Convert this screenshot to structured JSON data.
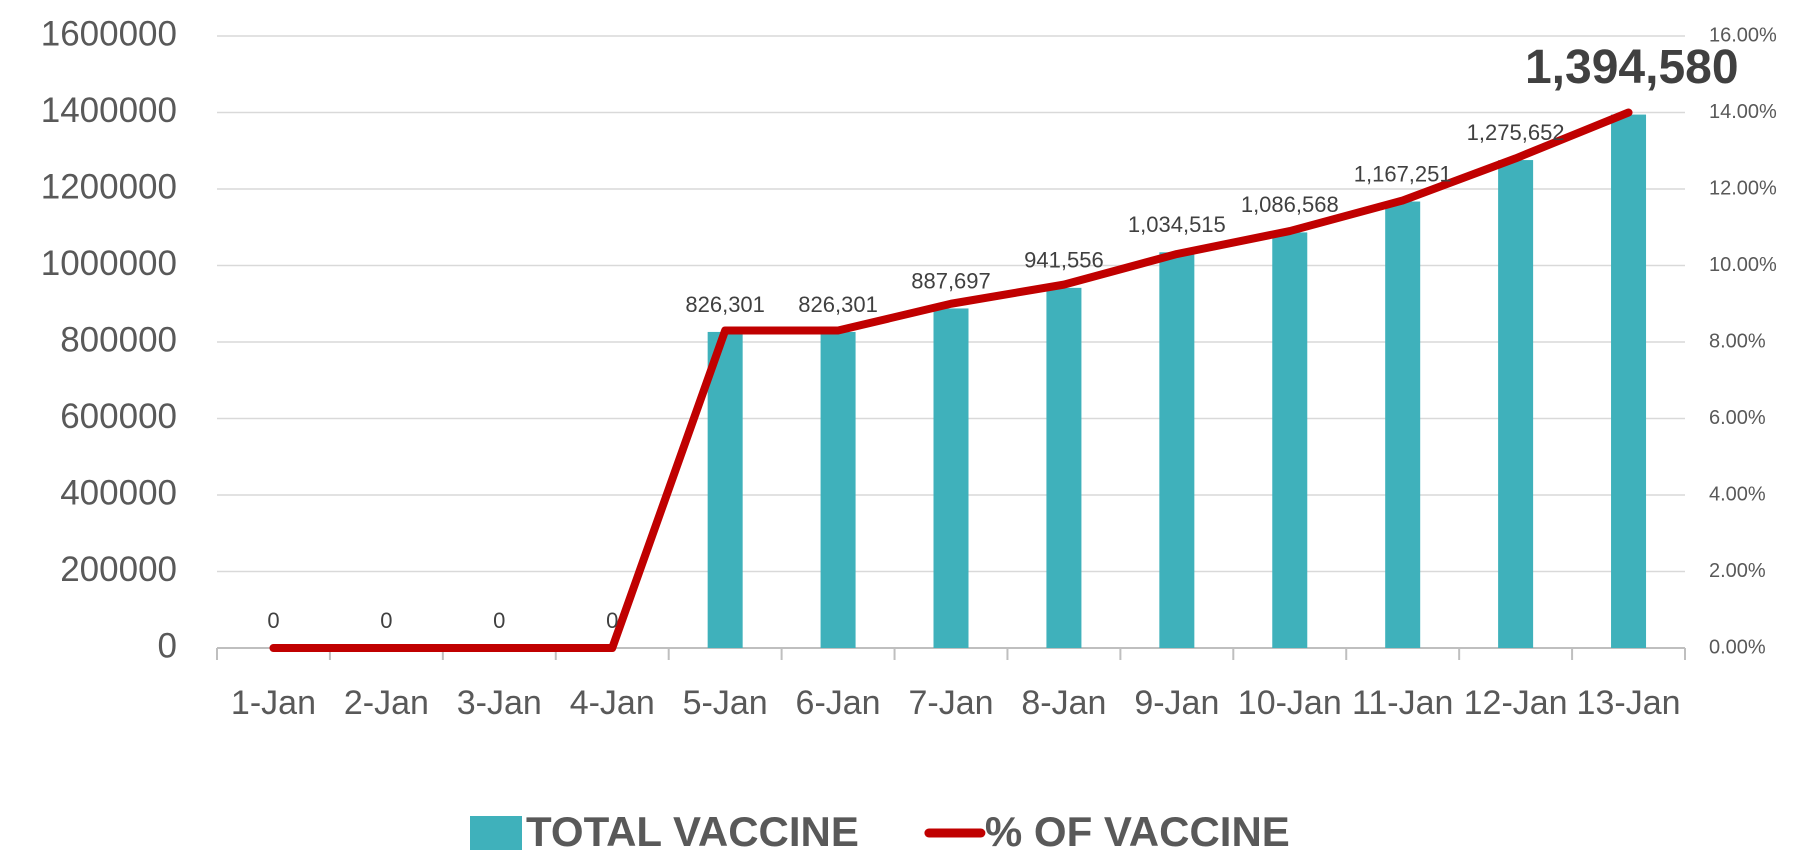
{
  "chart_data": {
    "type": "bar",
    "categories": [
      "1-Jan",
      "2-Jan",
      "3-Jan",
      "4-Jan",
      "5-Jan",
      "6-Jan",
      "7-Jan",
      "8-Jan",
      "9-Jan",
      "10-Jan",
      "11-Jan",
      "12-Jan",
      "13-Jan"
    ],
    "series": [
      {
        "name": "TOTAL VACCINE",
        "type": "bar",
        "color": "#3fb1bb",
        "values": [
          0,
          0,
          0,
          0,
          826301,
          826301,
          887697,
          941556,
          1034515,
          1086568,
          1167251,
          1275652,
          1394580
        ],
        "value_labels": [
          "0",
          "0",
          "0",
          "0",
          "826,301",
          "826,301",
          "887,697",
          "941,556",
          "1,034,515",
          "1,086,568",
          "1,167,251",
          "1,275,652",
          "1,394,580"
        ]
      },
      {
        "name": "% OF VACCINE",
        "type": "line",
        "color": "#c00000",
        "axis": "y2",
        "values": [
          0,
          0,
          0,
          0,
          8.3,
          8.3,
          9.0,
          9.5,
          10.3,
          10.9,
          11.7,
          12.8,
          14.0
        ]
      }
    ],
    "ylim": [
      0,
      1600000
    ],
    "yticks": [
      0,
      200000,
      400000,
      600000,
      800000,
      1000000,
      1200000,
      1400000,
      1600000
    ],
    "y2lim": [
      0,
      16
    ],
    "y2ticks": [
      {
        "value": 0,
        "label": "0.00%"
      },
      {
        "value": 2,
        "label": "2.00%"
      },
      {
        "value": 4,
        "label": "4.00%"
      },
      {
        "value": 6,
        "label": "6.00%"
      },
      {
        "value": 8,
        "label": "8.00%"
      },
      {
        "value": 10,
        "label": "10.00%"
      },
      {
        "value": 12,
        "label": "12.00%"
      },
      {
        "value": 14,
        "label": "14.00%"
      },
      {
        "value": 16,
        "label": "16.00%"
      }
    ],
    "grid": true,
    "legend": "bottom"
  }
}
